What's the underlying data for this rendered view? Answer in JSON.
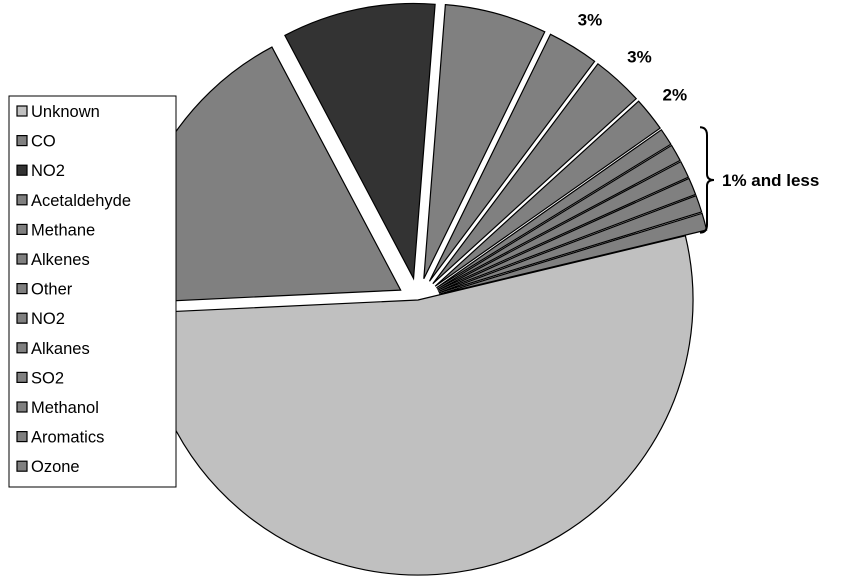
{
  "chart_data": {
    "type": "pie",
    "slices": [
      {
        "name": "Unknown",
        "value": 53,
        "label": "53%",
        "color": "#c0c0c0"
      },
      {
        "name": "CO",
        "value": 18,
        "label": "18%",
        "color": "#808080"
      },
      {
        "name": "NO2",
        "value": 9,
        "label": "9%",
        "color": "#333333"
      },
      {
        "name": "Acetaldehyde",
        "value": 6,
        "label": "6%",
        "color": "#808080"
      },
      {
        "name": "Methane",
        "value": 3,
        "label": "3%",
        "color": "#808080"
      },
      {
        "name": "Alkenes",
        "value": 3,
        "label": "3%",
        "color": "#808080"
      },
      {
        "name": "Other",
        "value": 2,
        "label": "2%",
        "color": "#808080"
      },
      {
        "name": "NO2",
        "value": 1,
        "label": "",
        "color": "#808080"
      },
      {
        "name": "Alkanes",
        "value": 1,
        "label": "",
        "color": "#808080"
      },
      {
        "name": "SO2",
        "value": 1,
        "label": "",
        "color": "#808080"
      },
      {
        "name": "Methanol",
        "value": 1,
        "label": "",
        "color": "#808080"
      },
      {
        "name": "Aromatics",
        "value": 1,
        "label": "",
        "color": "#808080"
      },
      {
        "name": "Ozone",
        "value": 1,
        "label": "",
        "color": "#808080"
      }
    ],
    "group_annotation": "1% and less",
    "legend_placement": "left"
  }
}
